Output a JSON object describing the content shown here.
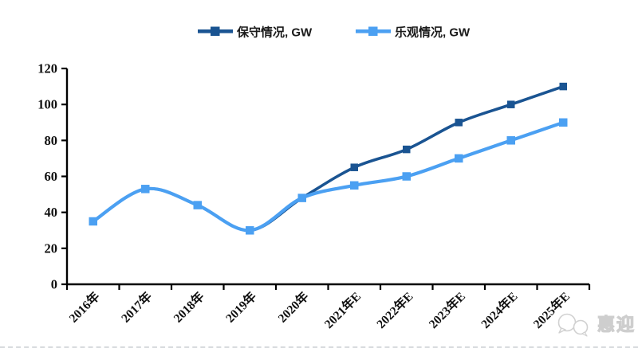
{
  "chart_data": {
    "type": "line",
    "title": "",
    "xlabel": "",
    "ylabel": "",
    "categories": [
      "2016年",
      "2017年",
      "2018年",
      "2019年",
      "2020年",
      "2021年E",
      "2022年E",
      "2023年E",
      "2024年E",
      "2025年E"
    ],
    "series": [
      {
        "name": "保守情况, GW",
        "color": "#1A5492",
        "marker": "square",
        "values": [
          35,
          53,
          44,
          30,
          48,
          65,
          75,
          90,
          100,
          110
        ]
      },
      {
        "name": "乐观情况, GW",
        "color": "#4BA0F2",
        "marker": "square",
        "values": [
          35,
          53,
          44,
          30,
          48,
          55,
          60,
          70,
          80,
          90
        ]
      }
    ],
    "ylim": [
      0,
      120
    ],
    "yticks": [
      0,
      20,
      40,
      60,
      80,
      100,
      120
    ],
    "grid": false,
    "legend_position": "top",
    "line_style": "smooth",
    "axis_color": "#000000"
  },
  "watermark": {
    "text": "惠迎",
    "icon": "chat-bubbles-icon",
    "color": "#c6c6c6"
  }
}
